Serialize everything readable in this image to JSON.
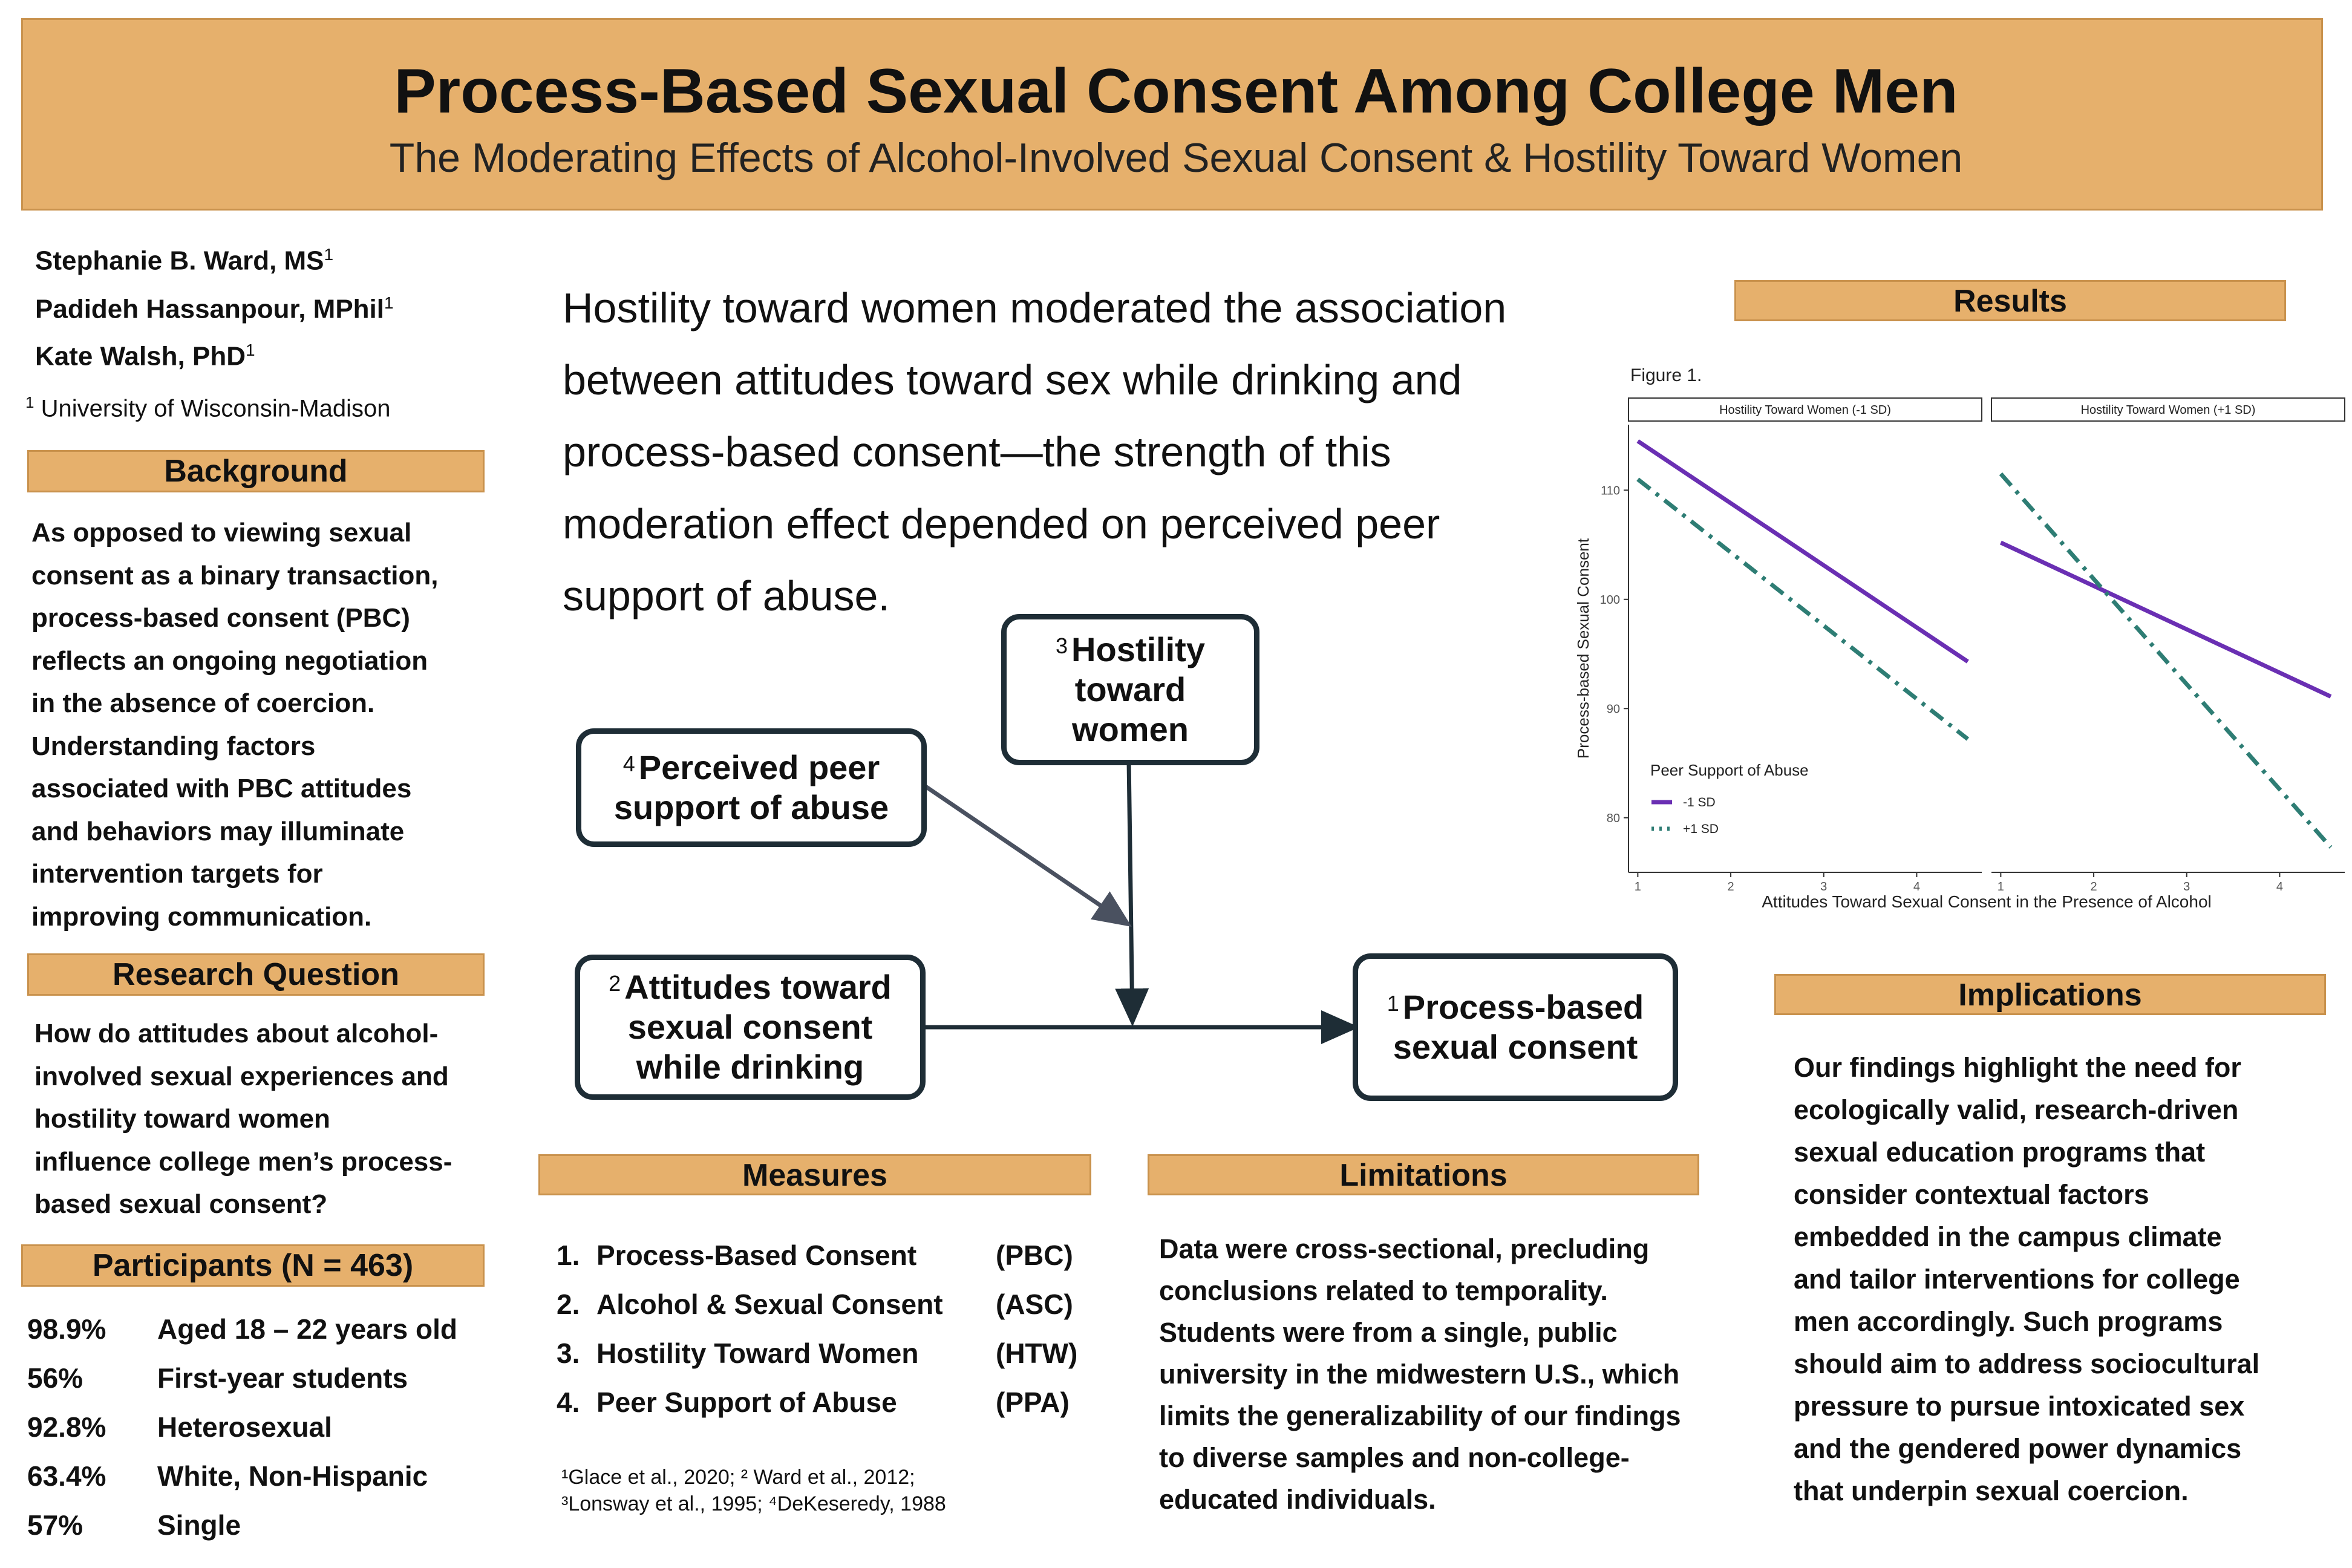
{
  "header": {
    "title": "Process-Based Sexual Consent Among College Men",
    "subtitle": "The Moderating Effects of Alcohol-Involved Sexual Consent & Hostility Toward Women"
  },
  "authors": [
    {
      "name": "Stephanie B. Ward, MS",
      "sup": "1"
    },
    {
      "name": "Padideh Hassanpour, MPhil",
      "sup": "1"
    },
    {
      "name": "Kate Walsh, PhD",
      "sup": "1"
    }
  ],
  "affiliation": {
    "sup": "1",
    "text": "University of Wisconsin-Madison"
  },
  "background": {
    "heading": "Background",
    "lines": [
      "As opposed to viewing sexual",
      "consent as a binary transaction,",
      "process-based consent (PBC)",
      "reflects an ongoing negotiation",
      "in the absence of coercion.",
      "Understanding factors",
      "associated with PBC attitudes",
      "and behaviors may illuminate",
      "intervention targets for",
      "improving communication."
    ]
  },
  "research_question": {
    "heading": "Research Question",
    "lines": [
      "How do attitudes about alcohol-",
      "involved sexual experiences and",
      "hostility toward women",
      "influence college men’s process-",
      "based sexual consent?"
    ]
  },
  "participants": {
    "heading": "Participants (N = 463)",
    "rows": [
      {
        "pct": "98.9%",
        "label": "Aged 18 – 22 years old"
      },
      {
        "pct": "56%",
        "label": "First-year students"
      },
      {
        "pct": "92.8%",
        "label": "Heterosexual"
      },
      {
        "pct": "63.4%",
        "label": "White, Non-Hispanic"
      },
      {
        "pct": "57%",
        "label": "Single"
      }
    ]
  },
  "key_finding": {
    "lines": [
      "Hostility toward women moderated the association",
      "between attitudes toward sex while drinking and",
      "process-based consent—the strength of this",
      "moderation effect depended on perceived peer",
      "support of abuse."
    ]
  },
  "model": {
    "hostility": {
      "sup": "3",
      "line1": "Hostility",
      "line2": "toward",
      "line3": "women"
    },
    "peer": {
      "sup": "4",
      "line1": "Perceived peer",
      "line2": "support of abuse"
    },
    "attitudes": {
      "sup": "2",
      "line1": "Attitudes toward",
      "line2": "sexual consent",
      "line3": "while drinking"
    },
    "outcome": {
      "sup": "1",
      "line1": "Process-based",
      "line2": "sexual consent"
    }
  },
  "measures": {
    "heading": "Measures",
    "items": [
      {
        "num": "1.",
        "name": "Process-Based Consent",
        "abbr": "(PBC)"
      },
      {
        "num": "2.",
        "name": "Alcohol & Sexual Consent",
        "abbr": "(ASC)"
      },
      {
        "num": "3.",
        "name": "Hostility Toward Women",
        "abbr": "(HTW)"
      },
      {
        "num": "4.",
        "name": "Peer Support of Abuse",
        "abbr": "(PPA)"
      }
    ],
    "refs_line1": "¹Glace et al., 2020; ² Ward et al., 2012;",
    "refs_line2": "³Lonsway et al., 1995; ⁴DeKeseredy, 1988"
  },
  "limitations": {
    "heading": "Limitations",
    "lines": [
      "Data were cross-sectional, precluding",
      "conclusions related to temporality.",
      "Students were from a single, public",
      "university in the midwestern U.S., which",
      "limits the generalizability of our findings",
      "to diverse samples and non-college-",
      "educated individuals."
    ]
  },
  "results": {
    "heading": "Results"
  },
  "implications": {
    "heading": "Implications",
    "lines": [
      "Our findings highlight the need for",
      "ecologically valid, research-driven",
      "sexual education programs that",
      "consider contextual factors",
      "embedded in the campus climate",
      "and tailor interventions for college",
      "men accordingly. Such programs",
      "should aim to address sociocultural",
      "pressure to pursue intoxicated sex",
      "and the gendered power dynamics",
      "that underpin sexual coercion."
    ]
  },
  "chart_data": {
    "type": "line",
    "figure_label": "Figure 1.",
    "xlabel": "Attitudes Toward Sexual Consent in the Presence of Alcohol",
    "ylabel": "Process-based Sexual Consent",
    "xlim": [
      0.9,
      4.7
    ],
    "ylim": [
      75,
      116
    ],
    "xticks": [
      1,
      2,
      3,
      4
    ],
    "yticks": [
      80,
      90,
      100,
      110
    ],
    "legend_title": "Peer Support of Abuse",
    "legend_placement": "bottom-left",
    "colors": {
      "minus": "#6a2fb3",
      "plus": "#2e7d74"
    },
    "panels": [
      {
        "strip": "Hostility Toward Women (-1 SD)",
        "series": [
          {
            "name": "-1 SD",
            "x": [
              1,
              4.55
            ],
            "y": [
              114.5,
              94.3
            ]
          },
          {
            "name": "+1 SD",
            "x": [
              1,
              4.55
            ],
            "y": [
              111.0,
              87.2
            ]
          }
        ]
      },
      {
        "strip": "Hostility Toward Women (+1 SD)",
        "series": [
          {
            "name": "-1 SD",
            "x": [
              1,
              4.55
            ],
            "y": [
              105.2,
              91.1
            ]
          },
          {
            "name": "+1 SD",
            "x": [
              1,
              4.55
            ],
            "y": [
              111.5,
              77.3
            ]
          }
        ]
      }
    ]
  }
}
